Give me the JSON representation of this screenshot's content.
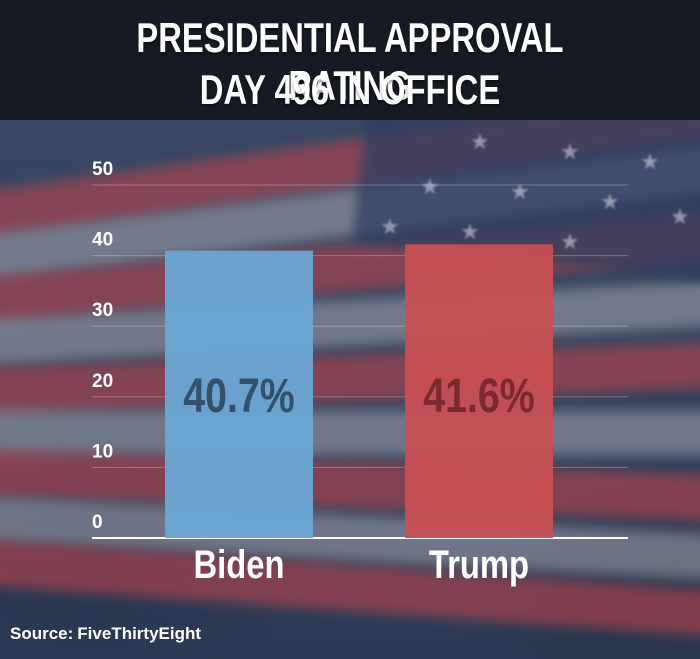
{
  "title": {
    "line1": "PRESIDENTIAL APPROVAL RATING",
    "line2": "DAY 496 IN OFFICE"
  },
  "source": {
    "prefix": "Source:",
    "name": "FiveThirtyEight"
  },
  "colors": {
    "biden": "#6aa6d4",
    "biden_label": "#34506a",
    "trump": "#c84f55",
    "trump_label": "#7a2a2e",
    "title_band": "#161a23",
    "text": "#ffffff"
  },
  "chart_data": {
    "type": "bar",
    "categories": [
      "Biden",
      "Trump"
    ],
    "values": [
      40.7,
      41.6
    ],
    "data_labels": [
      "40.7%",
      "41.6%"
    ],
    "ylim": [
      0,
      50
    ],
    "yticks": [
      0,
      10,
      20,
      30,
      40,
      50
    ],
    "grid": true,
    "legend": "none"
  }
}
